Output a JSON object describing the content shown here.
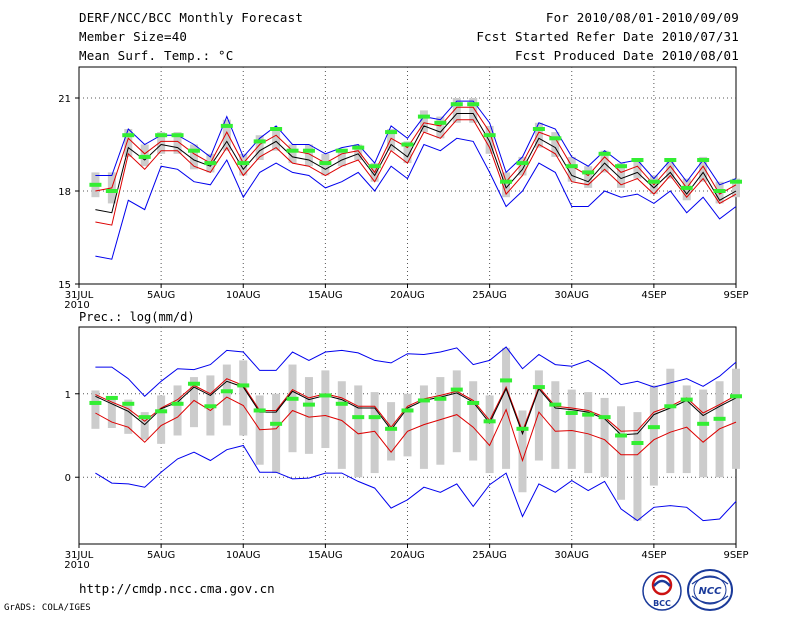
{
  "header": {
    "title": "DERF/NCC/BCC Monthly Forecast",
    "member": "Member Size=40",
    "variable": "Mean Surf. Temp.: °C",
    "period": "For 2010/08/01-2010/09/09",
    "started": "Fcst Started Refer Date 2010/07/31",
    "produced": "Fcst Produced Date 2010/08/01"
  },
  "footer": {
    "url": "http://cmdp.ncc.cma.gov.cn",
    "grads": "GrADS: COLA/IGES"
  },
  "logos": {
    "bcc": "BCC",
    "ncc": "NCC"
  },
  "colors": {
    "upper_lower": "#0000ee",
    "quartile": "#dd0000",
    "median": "#000000",
    "box": "#cccccc",
    "obs": "#33ee33"
  },
  "chart_data": [
    {
      "type": "line",
      "panel": "temperature",
      "title": "Mean Surf. Temp.: °C",
      "ylim": [
        15,
        22
      ],
      "yticks": [
        15,
        18,
        21
      ],
      "xlim": [
        0,
        40
      ],
      "x_ticks": [
        {
          "x": 0,
          "label": "31JUL"
        },
        {
          "x": 5,
          "label": "5AUG"
        },
        {
          "x": 10,
          "label": "10AUG"
        },
        {
          "x": 15,
          "label": "15AUG"
        },
        {
          "x": 20,
          "label": "20AUG"
        },
        {
          "x": 25,
          "label": "25AUG"
        },
        {
          "x": 30,
          "label": "30AUG"
        },
        {
          "x": 35,
          "label": "4SEP"
        },
        {
          "x": 40,
          "label": "9SEP"
        }
      ],
      "year_label": "2010",
      "x": [
        1,
        2,
        3,
        4,
        5,
        6,
        7,
        8,
        9,
        10,
        11,
        12,
        13,
        14,
        15,
        16,
        17,
        18,
        19,
        20,
        21,
        22,
        23,
        24,
        25,
        26,
        27,
        28,
        29,
        30,
        31,
        32,
        33,
        34,
        35,
        36,
        37,
        38,
        39,
        40
      ],
      "series": [
        {
          "name": "upper",
          "color": "#0000ee",
          "values": [
            18.5,
            18.5,
            20.0,
            19.5,
            19.8,
            19.8,
            19.5,
            19.1,
            20.4,
            19.1,
            19.7,
            20.1,
            19.5,
            19.5,
            19.2,
            19.4,
            19.5,
            18.9,
            20.1,
            19.7,
            20.4,
            20.3,
            20.9,
            20.9,
            20.2,
            18.6,
            19.1,
            20.2,
            20.0,
            19.1,
            18.8,
            19.3,
            18.9,
            19.0,
            18.4,
            19.0,
            18.3,
            19.0,
            18.2,
            18.4
          ]
        },
        {
          "name": "q_upper",
          "color": "#dd0000",
          "values": [
            18.0,
            18.1,
            19.7,
            19.2,
            19.6,
            19.6,
            19.2,
            18.9,
            19.9,
            18.9,
            19.5,
            19.8,
            19.3,
            19.2,
            18.9,
            19.2,
            19.3,
            18.6,
            19.7,
            19.4,
            20.2,
            20.1,
            20.7,
            20.7,
            19.9,
            18.3,
            18.9,
            19.9,
            19.7,
            18.8,
            18.5,
            19.1,
            18.6,
            18.8,
            18.2,
            18.8,
            18.1,
            18.8,
            17.9,
            18.2
          ]
        },
        {
          "name": "median",
          "color": "#000000",
          "values": [
            17.4,
            17.3,
            19.4,
            19.0,
            19.5,
            19.4,
            19.0,
            18.8,
            19.6,
            18.7,
            19.3,
            19.6,
            19.1,
            19.0,
            18.7,
            19.0,
            19.2,
            18.5,
            19.5,
            19.1,
            20.1,
            19.9,
            20.5,
            20.5,
            19.6,
            18.1,
            18.7,
            19.7,
            19.4,
            18.5,
            18.3,
            18.9,
            18.4,
            18.6,
            18.1,
            18.6,
            17.9,
            18.6,
            17.7,
            18.0
          ]
        },
        {
          "name": "q_lower",
          "color": "#dd0000",
          "values": [
            17.0,
            16.9,
            19.2,
            18.7,
            19.3,
            19.3,
            18.8,
            18.6,
            19.4,
            18.5,
            19.1,
            19.4,
            18.9,
            18.8,
            18.5,
            18.8,
            19.0,
            18.3,
            19.3,
            18.9,
            19.9,
            19.7,
            20.3,
            20.3,
            19.4,
            17.9,
            18.5,
            19.5,
            19.2,
            18.3,
            18.2,
            18.7,
            18.2,
            18.4,
            17.9,
            18.5,
            17.8,
            18.4,
            17.6,
            17.9
          ]
        },
        {
          "name": "lower",
          "color": "#0000ee",
          "values": [
            15.9,
            15.8,
            17.7,
            17.4,
            18.8,
            18.7,
            18.3,
            18.2,
            19.0,
            17.8,
            18.6,
            18.9,
            18.6,
            18.5,
            18.1,
            18.3,
            18.6,
            18.0,
            18.8,
            18.4,
            19.5,
            19.3,
            19.7,
            19.6,
            18.6,
            17.5,
            18.0,
            18.9,
            18.6,
            17.5,
            17.5,
            18.0,
            17.8,
            17.9,
            17.6,
            18.0,
            17.3,
            17.8,
            17.1,
            17.5
          ]
        }
      ],
      "boxes": [
        [
          17.8,
          18.6
        ],
        [
          17.6,
          18.6
        ],
        [
          19.1,
          20.0
        ],
        [
          18.8,
          19.5
        ],
        [
          19.2,
          19.9
        ],
        [
          19.2,
          19.9
        ],
        [
          18.7,
          19.5
        ],
        [
          18.6,
          19.2
        ],
        [
          19.3,
          20.3
        ],
        [
          18.5,
          19.2
        ],
        [
          19.0,
          19.8
        ],
        [
          19.3,
          20.0
        ],
        [
          18.9,
          19.5
        ],
        [
          18.8,
          19.5
        ],
        [
          18.5,
          19.2
        ],
        [
          18.8,
          19.3
        ],
        [
          19.0,
          19.5
        ],
        [
          18.3,
          18.9
        ],
        [
          19.3,
          20.0
        ],
        [
          18.9,
          19.6
        ],
        [
          19.9,
          20.6
        ],
        [
          19.7,
          20.4
        ],
        [
          20.2,
          21.0
        ],
        [
          20.2,
          21.0
        ],
        [
          19.2,
          20.1
        ],
        [
          17.8,
          18.6
        ],
        [
          18.5,
          19.1
        ],
        [
          19.4,
          20.2
        ],
        [
          19.1,
          19.9
        ],
        [
          18.3,
          19.1
        ],
        [
          18.1,
          18.8
        ],
        [
          18.6,
          19.3
        ],
        [
          18.1,
          18.9
        ],
        [
          18.4,
          19.0
        ],
        [
          17.9,
          18.5
        ],
        [
          18.4,
          19.0
        ],
        [
          17.7,
          18.4
        ],
        [
          18.3,
          19.1
        ],
        [
          17.6,
          18.3
        ],
        [
          17.8,
          18.4
        ]
      ],
      "observed": [
        18.2,
        18.0,
        19.8,
        19.1,
        19.8,
        19.8,
        19.3,
        18.9,
        20.1,
        18.9,
        19.6,
        20.0,
        19.3,
        19.3,
        18.9,
        19.3,
        19.4,
        18.8,
        19.9,
        19.5,
        20.4,
        20.2,
        20.8,
        20.8,
        19.8,
        18.3,
        18.9,
        20.0,
        19.7,
        18.8,
        18.6,
        19.2,
        18.8,
        19.0,
        18.3,
        19.0,
        18.1,
        19.0,
        18.0,
        18.3
      ]
    },
    {
      "type": "line",
      "panel": "precipitation",
      "title": "Prec.: log(mm/d)",
      "ylim": [
        -0.8,
        1.8
      ],
      "yticks": [
        0,
        1
      ],
      "xlim": [
        0,
        40
      ],
      "x_ticks": [
        {
          "x": 0,
          "label": "31JUL"
        },
        {
          "x": 5,
          "label": "5AUG"
        },
        {
          "x": 10,
          "label": "10AUG"
        },
        {
          "x": 15,
          "label": "15AUG"
        },
        {
          "x": 20,
          "label": "20AUG"
        },
        {
          "x": 25,
          "label": "25AUG"
        },
        {
          "x": 30,
          "label": "30AUG"
        },
        {
          "x": 35,
          "label": "4SEP"
        },
        {
          "x": 40,
          "label": "9SEP"
        }
      ],
      "year_label": "2010",
      "x": [
        1,
        2,
        3,
        4,
        5,
        6,
        7,
        8,
        9,
        10,
        11,
        12,
        13,
        14,
        15,
        16,
        17,
        18,
        19,
        20,
        21,
        22,
        23,
        24,
        25,
        26,
        27,
        28,
        29,
        30,
        31,
        32,
        33,
        34,
        35,
        36,
        37,
        38,
        39,
        40
      ],
      "series": [
        {
          "name": "upper",
          "color": "#0000ee",
          "values": [
            1.32,
            1.32,
            1.18,
            0.97,
            1.15,
            1.3,
            1.29,
            1.35,
            1.52,
            1.5,
            1.28,
            1.28,
            1.5,
            1.4,
            1.5,
            1.52,
            1.49,
            1.4,
            1.37,
            1.48,
            1.47,
            1.5,
            1.55,
            1.35,
            1.4,
            1.56,
            1.3,
            1.47,
            1.35,
            1.33,
            1.4,
            1.27,
            1.11,
            1.15,
            1.08,
            1.13,
            1.18,
            1.09,
            1.21,
            1.38
          ]
        },
        {
          "name": "q_upper",
          "color": "#dd0000",
          "values": [
            0.99,
            0.9,
            0.82,
            0.67,
            0.83,
            0.93,
            1.1,
            1.0,
            1.18,
            1.1,
            0.8,
            0.8,
            1.05,
            0.95,
            1.0,
            0.95,
            0.85,
            0.85,
            0.6,
            0.85,
            0.94,
            0.98,
            1.03,
            0.92,
            0.68,
            1.08,
            0.55,
            1.08,
            0.85,
            0.83,
            0.8,
            0.72,
            0.55,
            0.56,
            0.78,
            0.85,
            0.95,
            0.77,
            0.87,
            0.98
          ]
        },
        {
          "name": "median",
          "color": "#000000",
          "values": [
            0.97,
            0.88,
            0.79,
            0.63,
            0.82,
            0.9,
            1.08,
            0.98,
            1.15,
            1.08,
            0.78,
            0.78,
            1.03,
            0.93,
            0.98,
            0.93,
            0.83,
            0.83,
            0.57,
            0.83,
            0.92,
            0.96,
            1.01,
            0.9,
            0.65,
            1.06,
            0.52,
            1.06,
            0.83,
            0.81,
            0.78,
            0.7,
            0.51,
            0.52,
            0.75,
            0.83,
            0.92,
            0.74,
            0.85,
            0.95
          ]
        },
        {
          "name": "q_lower",
          "color": "#dd0000",
          "values": [
            0.77,
            0.66,
            0.6,
            0.42,
            0.62,
            0.72,
            0.92,
            0.8,
            0.96,
            0.86,
            0.57,
            0.58,
            0.8,
            0.72,
            0.74,
            0.68,
            0.52,
            0.55,
            0.3,
            0.55,
            0.63,
            0.69,
            0.75,
            0.6,
            0.38,
            0.81,
            0.2,
            0.78,
            0.55,
            0.56,
            0.52,
            0.45,
            0.27,
            0.27,
            0.45,
            0.54,
            0.6,
            0.42,
            0.58,
            0.66
          ]
        },
        {
          "name": "lower",
          "color": "#0000ee",
          "values": [
            0.05,
            -0.07,
            -0.08,
            -0.12,
            0.06,
            0.22,
            0.3,
            0.2,
            0.33,
            0.38,
            0.06,
            0.06,
            -0.02,
            -0.01,
            0.05,
            0.05,
            -0.05,
            -0.13,
            -0.37,
            -0.27,
            -0.12,
            -0.18,
            -0.08,
            -0.35,
            -0.09,
            0.05,
            -0.47,
            -0.08,
            -0.18,
            -0.04,
            -0.16,
            -0.05,
            -0.38,
            -0.52,
            -0.36,
            -0.34,
            -0.36,
            -0.52,
            -0.5,
            -0.29
          ]
        }
      ],
      "boxes": [
        [
          0.58,
          1.04
        ],
        [
          0.59,
          0.96
        ],
        [
          0.52,
          0.93
        ],
        [
          0.45,
          0.78
        ],
        [
          0.4,
          0.98
        ],
        [
          0.5,
          1.1
        ],
        [
          0.6,
          1.2
        ],
        [
          0.5,
          1.22
        ],
        [
          0.62,
          1.35
        ],
        [
          0.5,
          1.4
        ],
        [
          0.15,
          0.98
        ],
        [
          0.05,
          1.0
        ],
        [
          0.3,
          1.35
        ],
        [
          0.28,
          1.2
        ],
        [
          0.35,
          1.28
        ],
        [
          0.1,
          1.15
        ],
        [
          0.0,
          1.1
        ],
        [
          0.05,
          1.02
        ],
        [
          0.2,
          0.9
        ],
        [
          0.25,
          1.0
        ],
        [
          0.1,
          1.1
        ],
        [
          0.15,
          1.2
        ],
        [
          0.3,
          1.28
        ],
        [
          0.2,
          1.15
        ],
        [
          0.05,
          0.98
        ],
        [
          0.1,
          1.55
        ],
        [
          -0.18,
          0.8
        ],
        [
          0.2,
          1.28
        ],
        [
          0.1,
          1.15
        ],
        [
          0.1,
          1.05
        ],
        [
          0.05,
          1.02
        ],
        [
          0.0,
          0.95
        ],
        [
          -0.27,
          0.85
        ],
        [
          -0.52,
          0.78
        ],
        [
          -0.1,
          1.1
        ],
        [
          0.05,
          1.3
        ],
        [
          0.05,
          1.1
        ],
        [
          0.0,
          1.05
        ],
        [
          0.0,
          1.15
        ],
        [
          0.1,
          1.3
        ]
      ],
      "observed": [
        0.89,
        0.95,
        0.88,
        0.72,
        0.79,
        0.88,
        1.12,
        0.85,
        1.03,
        1.1,
        0.8,
        0.64,
        0.94,
        0.87,
        0.98,
        0.88,
        0.72,
        0.72,
        0.58,
        0.8,
        0.92,
        0.94,
        1.05,
        0.89,
        0.67,
        1.16,
        0.58,
        1.08,
        0.87,
        0.77,
        0.75,
        0.72,
        0.5,
        0.41,
        0.6,
        0.85,
        0.93,
        0.64,
        0.7,
        0.97
      ]
    }
  ]
}
